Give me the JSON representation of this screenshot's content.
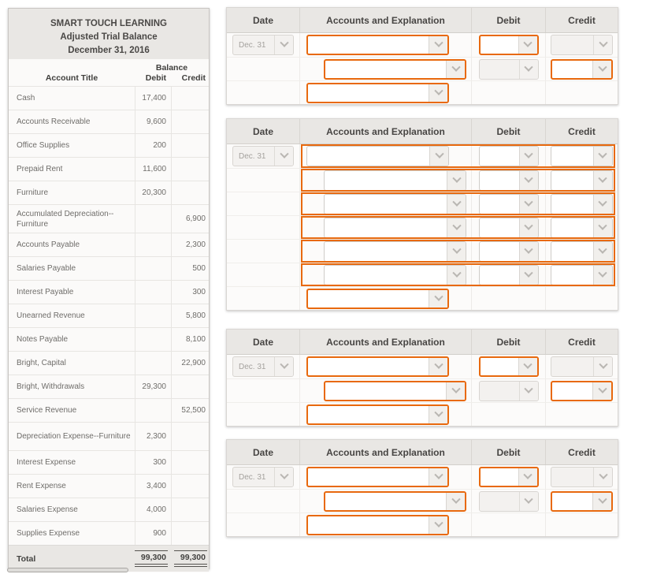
{
  "trial_balance": {
    "title_lines": [
      "SMART TOUCH LEARNING",
      "Adjusted Trial Balance",
      "December 31, 2016"
    ],
    "balance_label": "Balance",
    "columns": {
      "account": "Account Title",
      "debit": "Debit",
      "credit": "Credit"
    },
    "rows": [
      {
        "account": "Cash",
        "debit": "17,400",
        "credit": "",
        "tall": false
      },
      {
        "account": "Accounts Receivable",
        "debit": "9,600",
        "credit": "",
        "tall": false
      },
      {
        "account": "Office Supplies",
        "debit": "200",
        "credit": "",
        "tall": false
      },
      {
        "account": "Prepaid Rent",
        "debit": "11,600",
        "credit": "",
        "tall": false
      },
      {
        "account": "Furniture",
        "debit": "20,300",
        "credit": "",
        "tall": false
      },
      {
        "account": "Accumulated Depreciation--Furniture",
        "debit": "",
        "credit": "6,900",
        "tall": true
      },
      {
        "account": "Accounts Payable",
        "debit": "",
        "credit": "2,300",
        "tall": false
      },
      {
        "account": "Salaries Payable",
        "debit": "",
        "credit": "500",
        "tall": false
      },
      {
        "account": "Interest Payable",
        "debit": "",
        "credit": "300",
        "tall": false
      },
      {
        "account": "Unearned Revenue",
        "debit": "",
        "credit": "5,800",
        "tall": false
      },
      {
        "account": "Notes Payable",
        "debit": "",
        "credit": "8,100",
        "tall": false
      },
      {
        "account": "Bright, Capital",
        "debit": "",
        "credit": "22,900",
        "tall": false
      },
      {
        "account": "Bright, Withdrawals",
        "debit": "29,300",
        "credit": "",
        "tall": false
      },
      {
        "account": "Service Revenue",
        "debit": "",
        "credit": "52,500",
        "tall": false
      },
      {
        "account": "Depreciation Expense--Furniture",
        "debit": "2,300",
        "credit": "",
        "tall": true
      },
      {
        "account": "Interest Expense",
        "debit": "300",
        "credit": "",
        "tall": false
      },
      {
        "account": "Rent Expense",
        "debit": "3,400",
        "credit": "",
        "tall": false
      },
      {
        "account": "Salaries Expense",
        "debit": "4,000",
        "credit": "",
        "tall": false
      },
      {
        "account": "Supplies Expense",
        "debit": "900",
        "credit": "",
        "tall": false
      }
    ],
    "total": {
      "label": "Total",
      "debit": "99,300",
      "credit": "99,300"
    }
  },
  "journal": {
    "columns": {
      "date": "Date",
      "accounts": "Accounts and Explanation",
      "debit": "Debit",
      "credit": "Credit"
    },
    "date_value": "Dec. 31",
    "tables": [
      {
        "name": "journal-entry-1",
        "kind": "simple"
      },
      {
        "name": "journal-entry-2",
        "kind": "compound",
        "detail_rows": 6
      },
      {
        "name": "journal-entry-3",
        "kind": "simple"
      },
      {
        "name": "journal-entry-4",
        "kind": "simple"
      }
    ]
  },
  "colors": {
    "accent_orange": "#e8690e",
    "header_gray": "#e9e7e4"
  }
}
